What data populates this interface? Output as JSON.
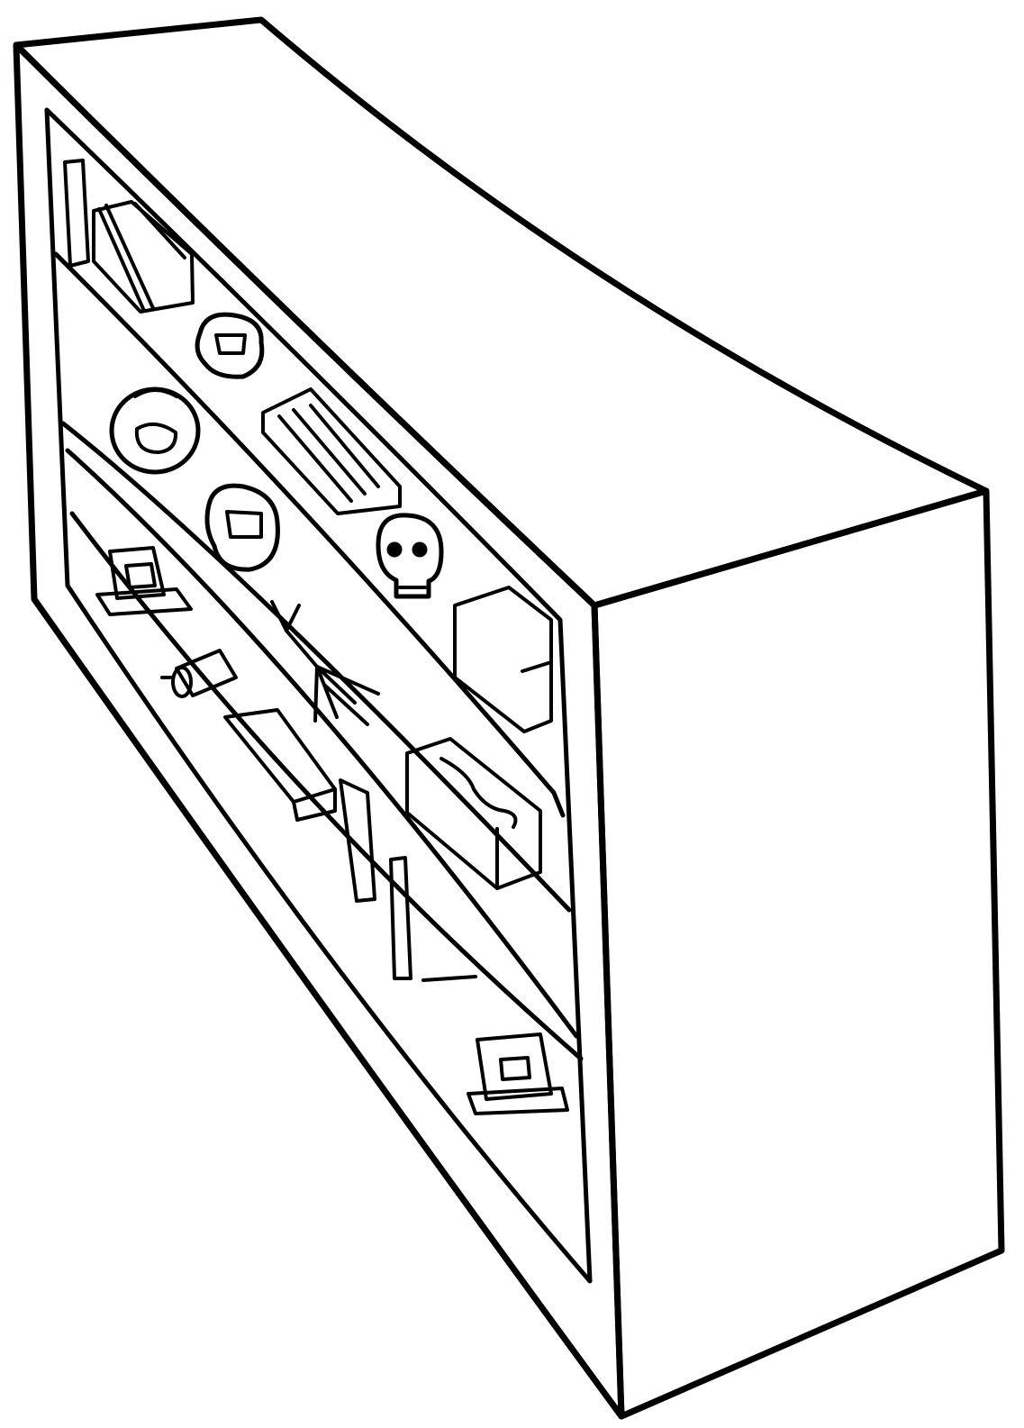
{
  "drawing": {
    "subject": "bookshelf-line-drawing",
    "style": "black-ink-line-art",
    "colors": {
      "ink": "#000000",
      "paper": "#ffffff"
    },
    "parts": [
      "cabinet-top",
      "cabinet-side",
      "cabinet-front-frame",
      "shelf-1",
      "shelf-2",
      "shelf-3",
      "shelf-4",
      "books",
      "skull",
      "jars",
      "framed-pictures",
      "cylinder-object",
      "squid-specimen",
      "snake-box",
      "standing-boards"
    ]
  }
}
